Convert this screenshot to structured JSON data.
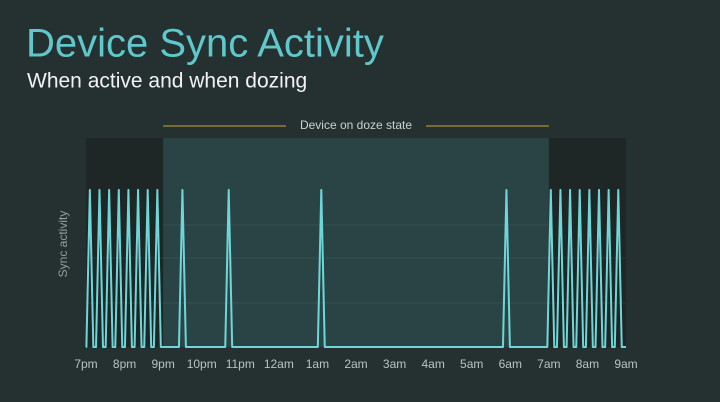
{
  "chart_data": {
    "type": "line",
    "title": "Device Sync Activity",
    "subtitle": "When active and when dozing",
    "y_label": "Sync activity",
    "annotation": {
      "text": "Device on doze state",
      "x_start": 2,
      "x_end": 12
    },
    "xlim": [
      0,
      14
    ],
    "ylim": [
      0,
      1.33
    ],
    "xticks": [
      {
        "value": 0,
        "label": "7pm"
      },
      {
        "value": 1,
        "label": "8pm"
      },
      {
        "value": 2,
        "label": "9pm"
      },
      {
        "value": 3,
        "label": "10pm"
      },
      {
        "value": 4,
        "label": "11pm"
      },
      {
        "value": 5,
        "label": "12am"
      },
      {
        "value": 6,
        "label": "1am"
      },
      {
        "value": 7,
        "label": "2am"
      },
      {
        "value": 8,
        "label": "3am"
      },
      {
        "value": 9,
        "label": "4am"
      },
      {
        "value": 10,
        "label": "5am"
      },
      {
        "value": 11,
        "label": "6am"
      },
      {
        "value": 12,
        "label": "7am"
      },
      {
        "value": 13,
        "label": "8am"
      },
      {
        "value": 14,
        "label": "9am"
      }
    ],
    "color": "#6fd6d8",
    "x": [
      0,
      0.01,
      0.1,
      0.19,
      0.26,
      0.35,
      0.44,
      0.51,
      0.6,
      0.69,
      0.76,
      0.85,
      0.94,
      1.01,
      1.1,
      1.19,
      1.26,
      1.35,
      1.44,
      1.51,
      1.6,
      1.69,
      1.76,
      1.85,
      1.94,
      2.41,
      2.5,
      2.59,
      3.61,
      3.7,
      3.79,
      6.01,
      6.1,
      6.19,
      10.81,
      10.9,
      10.99,
      11.96,
      12.05,
      12.14,
      12.21,
      12.3,
      12.39,
      12.46,
      12.55,
      12.64,
      12.71,
      12.8,
      12.89,
      12.96,
      13.05,
      13.14,
      13.21,
      13.3,
      13.39,
      13.46,
      13.55,
      13.64,
      13.71,
      13.8,
      13.89,
      14
    ],
    "values": [
      0,
      0,
      1,
      0,
      0,
      1,
      0,
      0,
      1,
      0,
      0,
      1,
      0,
      0,
      1,
      0,
      0,
      1,
      0,
      0,
      1,
      0,
      0,
      1,
      0,
      0,
      1,
      0,
      0,
      1,
      0,
      0,
      1,
      0,
      0,
      1,
      0,
      0,
      1,
      0,
      0,
      1,
      0,
      0,
      1,
      0,
      0,
      1,
      0,
      0,
      1,
      0,
      0,
      1,
      0,
      0,
      1,
      0,
      0,
      1,
      0,
      0
    ]
  }
}
